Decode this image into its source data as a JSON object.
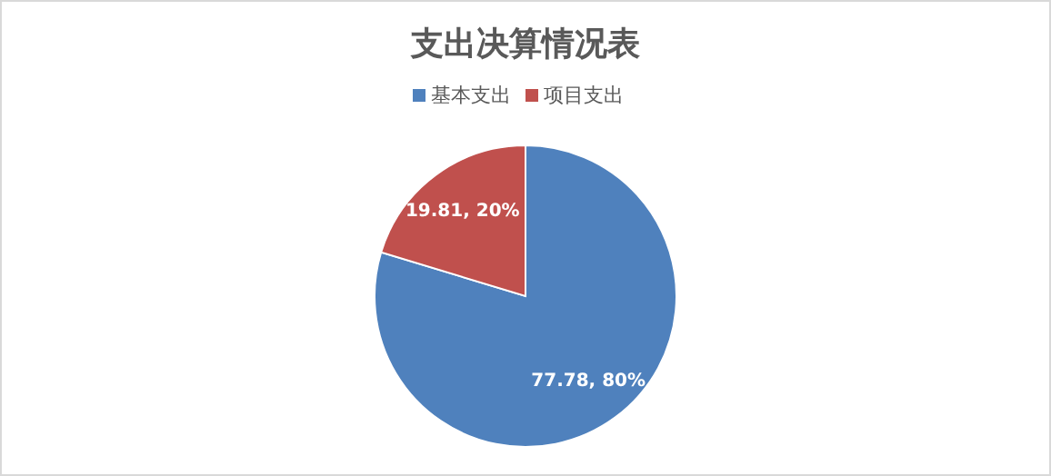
{
  "chart_data": {
    "type": "pie",
    "title": "支出决算情况表",
    "categories": [
      "基本支出",
      "项目支出"
    ],
    "values": [
      77.78,
      19.81
    ],
    "colors": [
      "#4f81bd",
      "#c0504d"
    ],
    "value_labels": [
      "77.78, 80%",
      "19.81, 20%"
    ],
    "legend": "top"
  }
}
